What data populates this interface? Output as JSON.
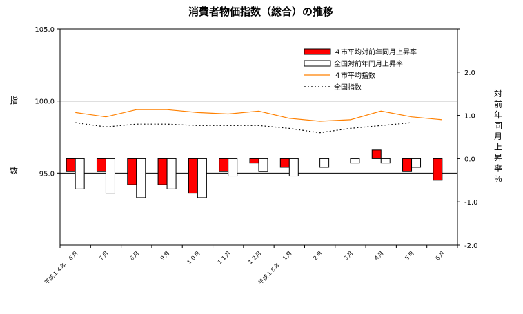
{
  "chart_data": {
    "type": "bar+line",
    "title": "消費者物価指数（総合）の推移",
    "categories": [
      "平成１４年　６月",
      "７月",
      "８月",
      "９月",
      "１０月",
      "１１月",
      "１２月",
      "平成１５年　１月",
      "２月",
      "３月",
      "４月",
      "５月",
      "６月"
    ],
    "left_axis": {
      "label_chars": [
        "指",
        "数"
      ],
      "ylim": [
        90.0,
        105.0
      ],
      "ticks": [
        "105.0",
        "100.0",
        "95.0"
      ]
    },
    "right_axis": {
      "label_chars": [
        "対",
        "前",
        "年",
        "同",
        "月",
        "上",
        "昇",
        "率",
        "％"
      ],
      "ylim": [
        -2.0,
        3.0
      ],
      "ticks": [
        "2.0",
        "1.0",
        "0.0",
        "-1.0",
        "-2.0"
      ]
    },
    "series": [
      {
        "name": "４市平均対前年同月上昇率",
        "type": "bar",
        "axis": "right",
        "color": "#ff0000",
        "values": [
          -0.3,
          -0.3,
          -0.6,
          -0.6,
          -0.8,
          -0.3,
          -0.1,
          -0.2,
          0.0,
          0.0,
          0.2,
          -0.3,
          -0.5
        ]
      },
      {
        "name": "全国対前年同月上昇率",
        "type": "bar",
        "axis": "right",
        "color": "#ffffff",
        "values": [
          -0.7,
          -0.8,
          -0.9,
          -0.7,
          -0.9,
          -0.4,
          -0.3,
          -0.4,
          -0.2,
          -0.1,
          -0.1,
          -0.2,
          null
        ]
      },
      {
        "name": "４市平均指数",
        "type": "line",
        "axis": "left",
        "color": "#ff8000",
        "style": "solid",
        "values": [
          99.2,
          98.9,
          99.4,
          99.4,
          99.2,
          99.1,
          99.3,
          98.8,
          98.6,
          98.7,
          99.3,
          98.9,
          98.7
        ]
      },
      {
        "name": "全国指数",
        "type": "line",
        "axis": "left",
        "color": "#000000",
        "style": "dotted",
        "values": [
          98.5,
          98.2,
          98.4,
          98.4,
          98.3,
          98.3,
          98.3,
          98.1,
          97.8,
          98.1,
          98.3,
          98.5,
          null
        ]
      }
    ],
    "legend_placement": "top-right"
  }
}
